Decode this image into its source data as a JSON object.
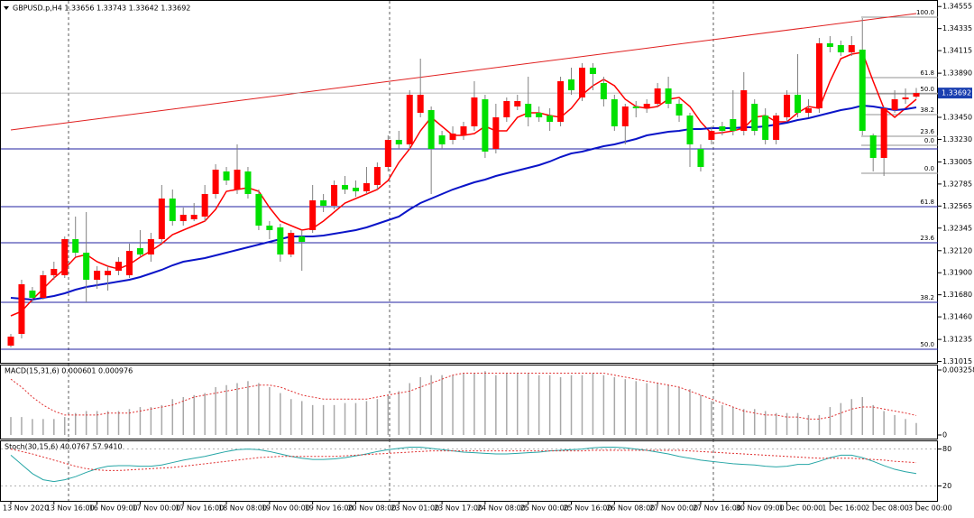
{
  "chart_data": [
    {
      "type": "candlestick",
      "title": "GBPUSD.p,H4  1.33656 1.33743 1.33642 1.33692",
      "categories": [
        "13 Nov 2020",
        null,
        null,
        null,
        "13 Nov 16:00",
        null,
        null,
        null,
        "16 Nov 09:00",
        null,
        null,
        null,
        "17 Nov 00:00",
        null,
        null,
        null,
        "17 Nov 16:00",
        null,
        null,
        null,
        "18 Nov 08:00",
        null,
        null,
        null,
        "19 Nov 00:00",
        null,
        null,
        null,
        "19 Nov 16:00",
        null,
        null,
        null,
        "20 Nov 08:00",
        null,
        null,
        null,
        "23 Nov 01:00",
        null,
        null,
        null,
        "23 Nov 17:00",
        null,
        null,
        null,
        "24 Nov 08:00",
        null,
        null,
        null,
        "25 Nov 00:00",
        null,
        null,
        null,
        "25 Nov 16:00",
        null,
        null,
        null,
        "26 Nov 08:00",
        null,
        null,
        null,
        "27 Nov 00:00",
        null,
        null,
        null,
        "27 Nov 16:00",
        null,
        null,
        null,
        "30 Nov 09:00",
        null,
        null,
        null,
        "1 Dec 00:00",
        null,
        null,
        null,
        "1 Dec 16:00",
        null,
        null,
        null,
        "2 Dec 08:00",
        null,
        null,
        null,
        "3 Dec 00:00"
      ],
      "open": [
        1.31173,
        1.3129,
        1.31722,
        1.3165,
        1.31875,
        1.31875,
        1.32235,
        1.321,
        1.3183,
        1.31875,
        1.3192,
        1.31875,
        1.32145,
        1.32082,
        1.32235,
        1.3264,
        1.32415,
        1.32433,
        1.3246,
        1.32685,
        1.3291,
        1.3273,
        1.3291,
        1.32685,
        1.3237,
        1.32352,
        1.32082,
        1.32262,
        1.32325,
        1.32622,
        1.32568,
        1.32775,
        1.32748,
        1.32712,
        1.32775,
        1.32955,
        1.33225,
        1.3318,
        1.33495,
        1.33522,
        1.3327,
        1.33225,
        1.3327,
        1.3336,
        1.3363,
        1.33135,
        1.3345,
        1.33558,
        1.33585,
        1.33495,
        1.33468,
        1.33405,
        1.33828,
        1.33648,
        1.33945,
        1.33792,
        1.3363,
        1.3336,
        1.33558,
        1.3354,
        1.33585,
        1.33738,
        1.33585,
        1.33468,
        1.33135,
        1.33225,
        1.3336,
        1.33432,
        1.33315,
        1.33585,
        1.33468,
        1.33225,
        1.3345,
        1.33675,
        1.33495,
        1.3354,
        1.34188,
        1.3417,
        1.34098,
        1.34125,
        1.3327,
        1.33045,
        1.33522,
        1.3363,
        1.33656
      ],
      "high": [
        1.3129,
        1.3183,
        1.31758,
        1.3192,
        1.3201,
        1.32262,
        1.3246,
        1.32505,
        1.31965,
        1.31965,
        1.32055,
        1.3219,
        1.32325,
        1.32298,
        1.32775,
        1.3273,
        1.3255,
        1.32595,
        1.32775,
        1.32982,
        1.32955,
        1.3318,
        1.32955,
        1.3273,
        1.32415,
        1.32388,
        1.32325,
        1.32325,
        1.32775,
        1.32685,
        1.3282,
        1.32865,
        1.3282,
        1.32955,
        1.33,
        1.3327,
        1.33315,
        1.3372,
        1.34035,
        1.33558,
        1.33315,
        1.3336,
        1.33405,
        1.3381,
        1.33675,
        1.33585,
        1.33648,
        1.33675,
        1.33855,
        1.33558,
        1.3354,
        1.33855,
        1.33945,
        1.3399,
        1.3399,
        1.33855,
        1.33675,
        1.33585,
        1.33612,
        1.3363,
        1.33792,
        1.33855,
        1.3363,
        1.33495,
        1.3318,
        1.3336,
        1.33405,
        1.3372,
        1.339,
        1.3363,
        1.3354,
        1.33495,
        1.3372,
        1.3408,
        1.3363,
        1.34242,
        1.3426,
        1.34215,
        1.3426,
        1.3444,
        1.33288,
        1.33558,
        1.3372,
        1.33738,
        1.33743
      ],
      "low": [
        1.31155,
        1.31245,
        1.31605,
        1.31632,
        1.3183,
        1.31848,
        1.32055,
        1.31605,
        1.3174,
        1.31722,
        1.31875,
        1.31848,
        1.32055,
        1.3201,
        1.3219,
        1.3237,
        1.3237,
        1.32415,
        1.32415,
        1.3264,
        1.32775,
        1.32685,
        1.3264,
        1.32325,
        1.32235,
        1.3201,
        1.32055,
        1.3192,
        1.32298,
        1.32505,
        1.32532,
        1.32685,
        1.32658,
        1.32685,
        1.3273,
        1.3291,
        1.33135,
        1.33135,
        1.3345,
        1.32685,
        1.33135,
        1.3318,
        1.33225,
        1.33315,
        1.33045,
        1.3309,
        1.33405,
        1.33522,
        1.3336,
        1.33405,
        1.33315,
        1.3336,
        1.33675,
        1.33612,
        1.3372,
        1.33558,
        1.33315,
        1.3318,
        1.3345,
        1.33495,
        1.33558,
        1.3354,
        1.33405,
        1.32955,
        1.3291,
        1.3318,
        1.3327,
        1.3327,
        1.3327,
        1.3327,
        1.3318,
        1.3318,
        1.33405,
        1.3345,
        1.3345,
        1.33495,
        1.34098,
        1.34062,
        1.34062,
        1.3327,
        1.3291,
        1.32865,
        1.33495,
        1.33585,
        1.33642
      ],
      "close": [
        1.31263,
        1.31785,
        1.3165,
        1.31875,
        1.31938,
        1.32235,
        1.321,
        1.3183,
        1.3192,
        1.3192,
        1.3201,
        1.32118,
        1.32082,
        1.32235,
        1.3264,
        1.32415,
        1.32478,
        1.32478,
        1.32685,
        1.32928,
        1.3282,
        1.32928,
        1.32685,
        1.3237,
        1.32325,
        1.32082,
        1.32298,
        1.32208,
        1.32622,
        1.32568,
        1.32775,
        1.3273,
        1.32712,
        1.32793,
        1.32955,
        1.33225,
        1.3318,
        1.33675,
        1.33675,
        1.33135,
        1.3318,
        1.33288,
        1.3336,
        1.33648,
        1.33108,
        1.3345,
        1.33612,
        1.33612,
        1.3345,
        1.3345,
        1.33405,
        1.3381,
        1.3372,
        1.33945,
        1.33882,
        1.3363,
        1.3336,
        1.33558,
        1.3354,
        1.33585,
        1.33738,
        1.33585,
        1.33468,
        1.3318,
        1.32955,
        1.33315,
        1.33315,
        1.33315,
        1.3372,
        1.33315,
        1.33225,
        1.33468,
        1.33675,
        1.33495,
        1.3354,
        1.34188,
        1.34152,
        1.34098,
        1.3417,
        1.33315,
        1.33045,
        1.3354,
        1.3363,
        1.33648,
        1.33692
      ],
      "up_color": "#ff0000",
      "down_color": "#00e000",
      "wick_color": "#808080",
      "overlays": [
        {
          "color": "#ff0000",
          "values": [
            1.3147,
            1.31515,
            1.31632,
            1.3174,
            1.31848,
            1.31938,
            1.32055,
            1.32082,
            1.3201,
            1.31965,
            1.31938,
            1.31983,
            1.32055,
            1.32118,
            1.3219,
            1.3228,
            1.32325,
            1.3237,
            1.32415,
            1.32532,
            1.32712,
            1.3273,
            1.32748,
            1.32712,
            1.3255,
            1.32415,
            1.3237,
            1.32325,
            1.32343,
            1.32415,
            1.32505,
            1.32595,
            1.3264,
            1.32685,
            1.3273,
            1.3282,
            1.33,
            1.33135,
            1.33315,
            1.3345,
            1.3336,
            1.3327,
            1.3327,
            1.33288,
            1.3336,
            1.33315,
            1.33315,
            1.3345,
            1.33495,
            1.33495,
            1.33468,
            1.3345,
            1.3354,
            1.33675,
            1.33765,
            1.33828,
            1.33765,
            1.3363,
            1.33558,
            1.3354,
            1.33558,
            1.3363,
            1.33648,
            1.33558,
            1.33405,
            1.33288,
            1.33297,
            1.33315,
            1.33342,
            1.3345,
            1.33468,
            1.33405,
            1.33405,
            1.33495,
            1.33558,
            1.3354,
            1.3381,
            1.34035,
            1.3408,
            1.34098,
            1.3381,
            1.3354,
            1.3345,
            1.3354,
            1.3363
          ]
        },
        {
          "color": "#0a14c8",
          "values": [
            1.3165,
            1.31641,
            1.31632,
            1.3165,
            1.31668,
            1.31695,
            1.31731,
            1.31758,
            1.31776,
            1.31794,
            1.31812,
            1.3183,
            1.31857,
            1.31893,
            1.31929,
            1.31974,
            1.3201,
            1.32028,
            1.32046,
            1.32073,
            1.321,
            1.32127,
            1.32154,
            1.32181,
            1.32208,
            1.32235,
            1.32262,
            1.32262,
            1.32262,
            1.32271,
            1.32289,
            1.32307,
            1.32325,
            1.32352,
            1.32388,
            1.32424,
            1.3246,
            1.32532,
            1.32595,
            1.3264,
            1.32685,
            1.3273,
            1.32766,
            1.32802,
            1.32829,
            1.32865,
            1.32892,
            1.32919,
            1.32946,
            1.32973,
            1.33009,
            1.33054,
            1.3309,
            1.33108,
            1.33135,
            1.33162,
            1.3318,
            1.33207,
            1.33234,
            1.3327,
            1.33288,
            1.33306,
            1.33315,
            1.33333,
            1.33333,
            1.33342,
            1.33342,
            1.33342,
            1.33351,
            1.33351,
            1.3336,
            1.33378,
            1.33396,
            1.33423,
            1.33441,
            1.33468,
            1.33495,
            1.33522,
            1.3354,
            1.33567,
            1.33558,
            1.3354,
            1.33522,
            1.33531,
            1.33549
          ]
        }
      ],
      "trendline": {
        "color": "#e02020",
        "values": [
          1.33324,
          1.34485
        ]
      },
      "fibs": [
        {
          "color": "#909090",
          "extent": "right",
          "levels": [
            {
              "label": "100.0",
              "value": 1.34449
            },
            {
              "label": "61.8",
              "value": 1.33846
            },
            {
              "label": "50.0",
              "value": 1.33684
            },
            {
              "label": "38.2",
              "value": 1.33477
            },
            {
              "label": "23.6",
              "value": 1.33261
            },
            {
              "label": "0.0",
              "value": 1.33171
            },
            {
              "label": "0.0",
              "value": 1.32892
            }
          ]
        },
        {
          "color": "#2020a0",
          "extent": "full",
          "levels": [
            {
              "value": 1.33135
            },
            {
              "label": "61.8",
              "value": 1.32559
            },
            {
              "label": "23.6",
              "value": 1.32199
            },
            {
              "label": "38.2",
              "value": 1.31605
            },
            {
              "label": "50.0",
              "value": 1.31137
            }
          ]
        }
      ],
      "price_box_color": "#1a3fb0",
      "ylim": [
        1.31002,
        1.3462
      ],
      "yticks": [
        1.34555,
        1.34335,
        1.34115,
        {
          "value": 1.3389,
          "label": "1.33890"
        },
        {
          "value": 1.3345,
          "label": "1.33450"
        },
        {
          "value": 1.3323,
          "label": "1.33230"
        },
        1.33005,
        1.32785,
        1.32565,
        1.32345,
        {
          "value": 1.3212,
          "label": "1.32120"
        },
        {
          "value": 1.319,
          "label": "1.31900"
        },
        {
          "value": 1.3168,
          "label": "1.31680"
        },
        {
          "value": 1.3146,
          "label": "1.31460"
        },
        1.31235,
        1.31015
      ]
    },
    {
      "type": "macd",
      "title": "MACD(15,31,6) 0.000601 0.000976",
      "values": [
        0.0009,
        0.0009,
        0.0008,
        0.0008,
        0.0008,
        0.0009,
        0.0011,
        0.0012,
        0.0012,
        0.0012,
        0.0012,
        0.0013,
        0.0014,
        0.0014,
        0.0015,
        0.0018,
        0.0019,
        0.002,
        0.0021,
        0.0024,
        0.0025,
        0.0026,
        0.0027,
        0.0026,
        0.0024,
        0.0021,
        0.0018,
        0.0017,
        0.0015,
        0.0015,
        0.0015,
        0.0016,
        0.0016,
        0.0017,
        0.0018,
        0.002,
        0.0022,
        0.0026,
        0.0029,
        0.003,
        0.003,
        0.003,
        0.0031,
        0.0031,
        0.0032,
        0.003,
        0.0031,
        0.0031,
        0.0031,
        0.003,
        0.003,
        0.0029,
        0.003,
        0.003,
        0.0031,
        0.003,
        0.0029,
        0.0028,
        0.0027,
        0.0026,
        0.0026,
        0.0025,
        0.0024,
        0.0023,
        0.002,
        0.0017,
        0.0015,
        0.0014,
        0.0013,
        0.0013,
        0.0012,
        0.0011,
        0.0011,
        0.0011,
        0.001,
        0.001,
        0.0014,
        0.0016,
        0.0018,
        0.0019,
        0.0015,
        0.0012,
        0.001,
        0.0008,
        0.000601
      ],
      "signal": [
        0.0028,
        0.0024,
        0.0019,
        0.0015,
        0.0012,
        0.001,
        0.001,
        0.001,
        0.001,
        0.0011,
        0.0011,
        0.0011,
        0.0012,
        0.0013,
        0.0014,
        0.0015,
        0.0017,
        0.0019,
        0.002,
        0.0021,
        0.0022,
        0.0023,
        0.0024,
        0.0025,
        0.0025,
        0.0024,
        0.0022,
        0.002,
        0.0019,
        0.0018,
        0.0018,
        0.0018,
        0.0018,
        0.0018,
        0.0019,
        0.002,
        0.0021,
        0.0022,
        0.0024,
        0.0026,
        0.0028,
        0.003,
        0.0031,
        0.0031,
        0.0031,
        0.0031,
        0.0031,
        0.0031,
        0.0031,
        0.0031,
        0.0031,
        0.0031,
        0.0031,
        0.0031,
        0.0031,
        0.0031,
        0.003,
        0.0029,
        0.0028,
        0.0027,
        0.0026,
        0.0025,
        0.0024,
        0.0022,
        0.002,
        0.0018,
        0.0016,
        0.0014,
        0.0012,
        0.0011,
        0.001,
        0.001,
        0.0009,
        0.0009,
        0.0008,
        0.0008,
        0.0009,
        0.0011,
        0.0013,
        0.0014,
        0.0014,
        0.0013,
        0.0012,
        0.0011,
        0.000976
      ],
      "color": "#a8a8a8",
      "signal_color": "#e03030",
      "ylim": [
        0,
        0.003258
      ],
      "yticks": [
        0,
        0.003258
      ]
    },
    {
      "type": "stoch",
      "title": "Stoch(30,15,6) 40.0767 57.9410",
      "series": [
        {
          "color": "#26a6a6",
          "dashed": false,
          "values": [
            70,
            55,
            40,
            30,
            27,
            30,
            35,
            42,
            48,
            52,
            53,
            53,
            52,
            52,
            54,
            58,
            62,
            65,
            68,
            72,
            76,
            79,
            80,
            79,
            76,
            72,
            68,
            65,
            63,
            63,
            64,
            66,
            69,
            72,
            76,
            79,
            81,
            83,
            83,
            81,
            79,
            77,
            75,
            74,
            73,
            72,
            72,
            73,
            74,
            75,
            77,
            78,
            79,
            80,
            82,
            83,
            83,
            82,
            80,
            78,
            75,
            72,
            68,
            65,
            62,
            60,
            58,
            56,
            55,
            54,
            52,
            51,
            52,
            55,
            55,
            60,
            66,
            70,
            70,
            66,
            60,
            53,
            47,
            43,
            40.0767
          ]
        },
        {
          "color": "#e03030",
          "dashed": true,
          "values": [
            80,
            76,
            72,
            67,
            62,
            57,
            52,
            48,
            46,
            45,
            45,
            46,
            47,
            48,
            49,
            50,
            52,
            54,
            56,
            58,
            60,
            62,
            64,
            66,
            67,
            68,
            68,
            68,
            68,
            68,
            68,
            69,
            70,
            71,
            72,
            73,
            74,
            75,
            76,
            77,
            77,
            77,
            77,
            77,
            77,
            77,
            77,
            77,
            77,
            77,
            77,
            77,
            77,
            77,
            78,
            78,
            78,
            78,
            78,
            78,
            78,
            78,
            78,
            77,
            76,
            75,
            74,
            73,
            72,
            71,
            70,
            69,
            68,
            67,
            66,
            65,
            65,
            65,
            65,
            64,
            63,
            62,
            60,
            59,
            57.941
          ]
        }
      ],
      "ylim": [
        0,
        100
      ],
      "yticks": [
        20,
        80
      ]
    }
  ]
}
